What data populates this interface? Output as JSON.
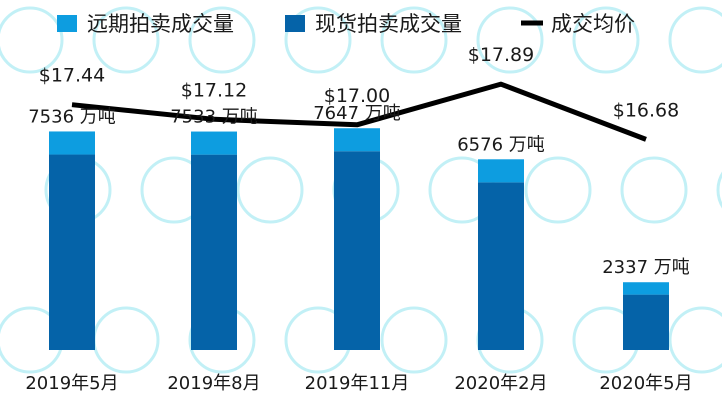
{
  "chart_data": {
    "type": "bar",
    "stacked": true,
    "categories": [
      "2019年5月",
      "2019年8月",
      "2019年11月",
      "2020年2月",
      "2020年5月"
    ],
    "series": [
      {
        "name": "现货拍卖成交量",
        "values": [
          6740,
          6737,
          6855,
          5780,
          1910
        ],
        "color": "#0563a8"
      },
      {
        "name": "远期拍卖成交量",
        "values": [
          796,
          796,
          792,
          796,
          427
        ],
        "color": "#0d9de0"
      }
    ],
    "totals": [
      7536,
      7533,
      7647,
      6576,
      2337
    ],
    "total_unit": "万吨",
    "line": {
      "name": "成交均价",
      "values": [
        17.44,
        17.12,
        17.0,
        17.89,
        16.68
      ],
      "labels": [
        "$17.44",
        "$17.12",
        "$17.00",
        "$17.89",
        "$16.68"
      ],
      "color": "#000000"
    },
    "legend_order": [
      "远期拍卖成交量",
      "现货拍卖成交量",
      "成交均价"
    ],
    "legend_position": "top",
    "grid": false,
    "ylim_volume": [
      0,
      10000
    ],
    "ylim_price": [
      15.9,
      18.2
    ]
  }
}
